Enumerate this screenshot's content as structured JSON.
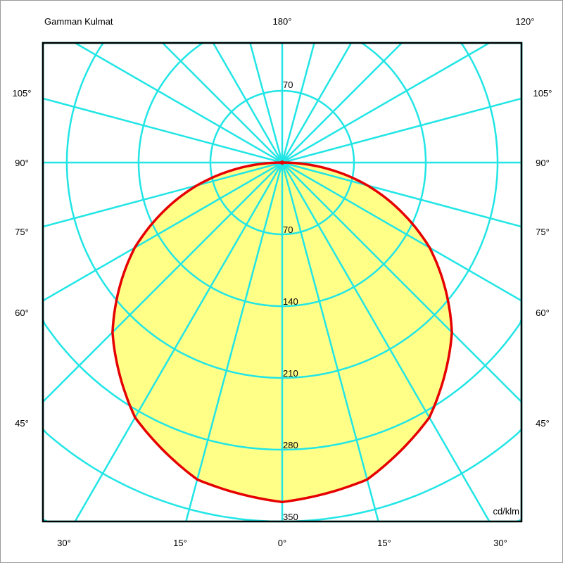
{
  "chart_data": {
    "type": "polar",
    "title": "Gamman Kulmat",
    "unit_label": "cd/klm",
    "radial_ticks": [
      70,
      140,
      210,
      280,
      350
    ],
    "radial_grid_max": 420,
    "angular_grid_step_deg": 15,
    "top_labels": [
      "180°",
      "120°"
    ],
    "side_labels": [
      "105°",
      "90°",
      "75°",
      "60°",
      "45°"
    ],
    "bottom_labels": [
      "30°",
      "15°",
      "0°",
      "15°",
      "30°"
    ],
    "grid": true,
    "series": [
      {
        "gamma_deg": [
          0,
          15,
          30,
          45,
          60,
          75,
          90
        ],
        "intensity": [
          331,
          320,
          287,
          234,
          166,
          86,
          0
        ],
        "symmetric": true
      }
    ],
    "colors": {
      "grid": "#22e5e5",
      "curve": "#e60000",
      "fill": "#ffff88",
      "frame": "#000000"
    }
  }
}
